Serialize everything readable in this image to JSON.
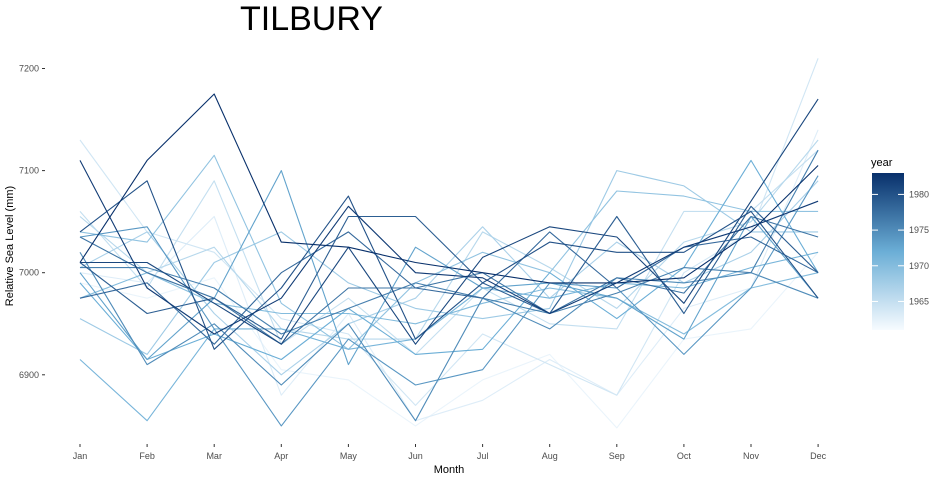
{
  "chart_data": {
    "type": "line",
    "title": "TILBURY",
    "xlabel": "Month",
    "ylabel": "Relative Sea Level (mm)",
    "categories": [
      "Jan",
      "Feb",
      "Mar",
      "Apr",
      "May",
      "Jun",
      "Jul",
      "Aug",
      "Sep",
      "Oct",
      "Nov",
      "Dec"
    ],
    "ylim": [
      6838,
      7220
    ],
    "yticks": [
      6900,
      7000,
      7100,
      7200
    ],
    "ytick_labels": [
      "6900",
      "7000",
      "7100",
      "7200"
    ],
    "grid": false,
    "legend": {
      "title": "year",
      "position": "right",
      "type": "colorbar",
      "range": [
        1961,
        1983
      ],
      "ticks": [
        1965,
        1970,
        1975,
        1980
      ],
      "tick_labels": [
        "1965",
        "1970",
        "1975",
        "1980"
      ],
      "color_low": "#f7fbff",
      "color_high": "#08306b"
    },
    "series": [
      {
        "year": 1962,
        "values": [
          6990,
          6975,
          6995,
          6905,
          6895,
          6850,
          6895,
          6920,
          6848,
          6935,
          6945,
          7020
        ]
      },
      {
        "year": 1963,
        "values": [
          7000,
          6990,
          7055,
          6880,
          6960,
          6855,
          6875,
          6915,
          6880,
          6965,
          6985,
          7140
        ]
      },
      {
        "year": 1964,
        "values": [
          7130,
          7040,
          7020,
          6955,
          6940,
          6870,
          6940,
          6910,
          6880,
          7000,
          7040,
          7210
        ]
      },
      {
        "year": 1965,
        "values": [
          7060,
          6985,
          7090,
          6930,
          6975,
          6920,
          6985,
          6950,
          6945,
          7060,
          7060,
          7120
        ]
      },
      {
        "year": 1966,
        "values": [
          7055,
          7000,
          7025,
          6945,
          6935,
          6935,
          7040,
          7005,
          6965,
          7030,
          7050,
          7130
        ]
      },
      {
        "year": 1967,
        "values": [
          7005,
          7040,
          6960,
          6900,
          6950,
          6975,
          7045,
          6975,
          7030,
          6990,
          7020,
          7090
        ]
      },
      {
        "year": 1968,
        "values": [
          6955,
          6920,
          7010,
          7040,
          6990,
          6965,
          6955,
          6965,
          7100,
          7085,
          7040,
          7040
        ]
      },
      {
        "year": 1969,
        "values": [
          7040,
          7030,
          7115,
          6970,
          6925,
          6990,
          7020,
          7000,
          7080,
          7075,
          7060,
          7060
        ]
      },
      {
        "year": 1970,
        "values": [
          6975,
          7000,
          6970,
          6960,
          6960,
          6950,
          6970,
          6985,
          6975,
          6940,
          6985,
          7000
        ]
      },
      {
        "year": 1971,
        "values": [
          6915,
          6855,
          6945,
          6945,
          6925,
          6935,
          6985,
          6975,
          6990,
          6985,
          7005,
          7020
        ]
      },
      {
        "year": 1972,
        "values": [
          6990,
          6915,
          6940,
          6915,
          6965,
          6920,
          6925,
          7000,
          6955,
          7005,
          7110,
          7000
        ]
      },
      {
        "year": 1973,
        "values": [
          7000,
          6915,
          6975,
          7100,
          6910,
          7025,
          6985,
          6990,
          6975,
          6935,
          7055,
          6975
        ]
      },
      {
        "year": 1974,
        "values": [
          7035,
          7045,
          6945,
          6850,
          6935,
          6890,
          6905,
          6990,
          6985,
          6920,
          6985,
          7095
        ]
      },
      {
        "year": 1975,
        "values": [
          7020,
          6910,
          6950,
          6890,
          6950,
          6855,
          6975,
          6945,
          6995,
          6990,
          7000,
          6975
        ]
      },
      {
        "year": 1976,
        "values": [
          7005,
          7005,
          6985,
          6940,
          6965,
          6990,
          6975,
          6960,
          6980,
          7005,
          7000,
          7120
        ]
      },
      {
        "year": 1977,
        "values": [
          7035,
          7000,
          6975,
          6930,
          6985,
          6985,
          7000,
          6960,
          6995,
          6980,
          7055,
          7035
        ]
      },
      {
        "year": 1978,
        "values": [
          6975,
          6990,
          6930,
          7000,
          7040,
          6985,
          6975,
          7040,
          6985,
          7025,
          7035,
          7000
        ]
      },
      {
        "year": 1979,
        "values": [
          7010,
          6960,
          6975,
          6935,
          7055,
          7055,
          6990,
          6960,
          7055,
          6960,
          7065,
          7000
        ]
      },
      {
        "year": 1980,
        "values": [
          7040,
          7090,
          6925,
          6985,
          7075,
          6935,
          6990,
          7030,
          7020,
          7020,
          7060,
          6975
        ]
      },
      {
        "year": 1981,
        "values": [
          7010,
          7010,
          6970,
          6930,
          7025,
          6930,
          7015,
          7045,
          7035,
          6970,
          7070,
          7170
        ]
      },
      {
        "year": 1982,
        "values": [
          7110,
          6985,
          6940,
          6975,
          7065,
          7000,
          6995,
          6960,
          6990,
          7025,
          7045,
          7070
        ]
      },
      {
        "year": 1983,
        "values": [
          7010,
          7110,
          7175,
          7030,
          7025,
          7010,
          7000,
          6990,
          6990,
          6995,
          7040,
          7105
        ]
      }
    ]
  }
}
